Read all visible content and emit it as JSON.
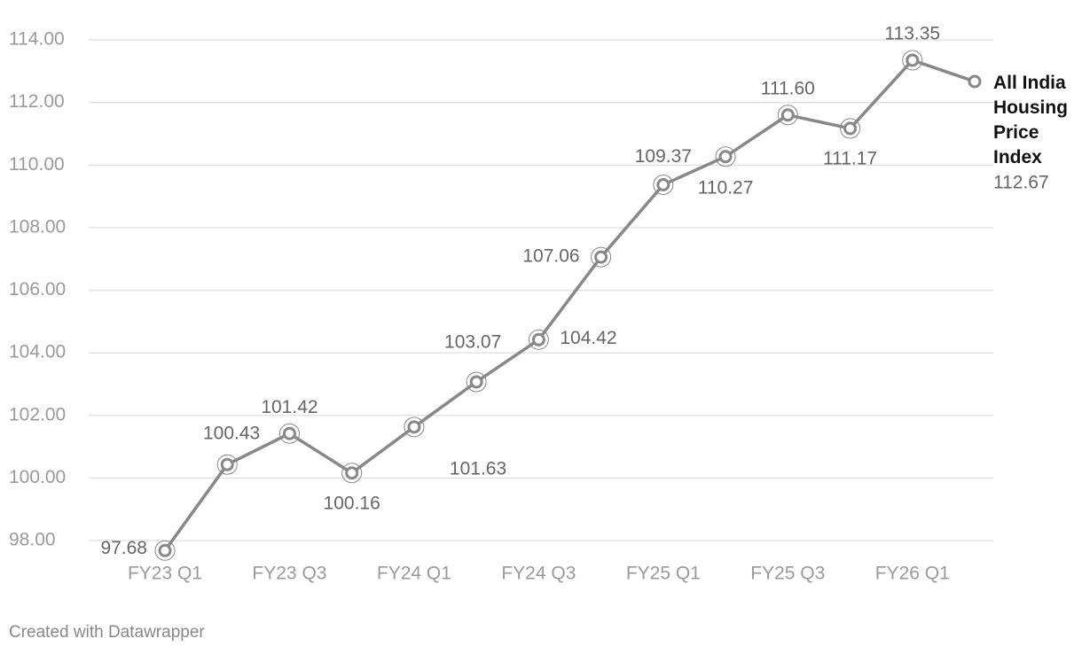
{
  "chart_data": {
    "type": "line",
    "categories": [
      "FY23 Q1",
      null,
      "FY23 Q3",
      null,
      "FY24 Q1",
      null,
      "FY24 Q3",
      null,
      "FY25 Q1",
      null,
      "FY25 Q3",
      null,
      "FY26 Q1",
      null
    ],
    "series": [
      {
        "name": "All India Housing Price Index",
        "color": "#888888",
        "values": [
          97.68,
          100.43,
          101.42,
          100.16,
          101.63,
          103.07,
          104.42,
          107.06,
          109.37,
          110.27,
          111.6,
          111.17,
          113.35,
          112.67
        ],
        "value_labels": [
          "97.68",
          "100.43",
          "101.42",
          "100.16",
          "101.63",
          "103.07",
          "104.42",
          "107.06",
          "109.37",
          "110.27",
          "111.60",
          "111.17",
          "113.35",
          "112.67"
        ]
      }
    ],
    "ylim": [
      98,
      114
    ],
    "yticks": [
      {
        "value": 98,
        "label": "98.00"
      },
      {
        "value": 100,
        "label": "100.00"
      },
      {
        "value": 102,
        "label": "102.00"
      },
      {
        "value": 104,
        "label": "104.00"
      },
      {
        "value": 106,
        "label": "106.00"
      },
      {
        "value": 108,
        "label": "108.00"
      },
      {
        "value": 110,
        "label": "110.00"
      },
      {
        "value": 112,
        "label": "112.00"
      },
      {
        "value": 114,
        "label": "114.00"
      }
    ],
    "grid": true,
    "footer": "Created with Datawrapper"
  }
}
